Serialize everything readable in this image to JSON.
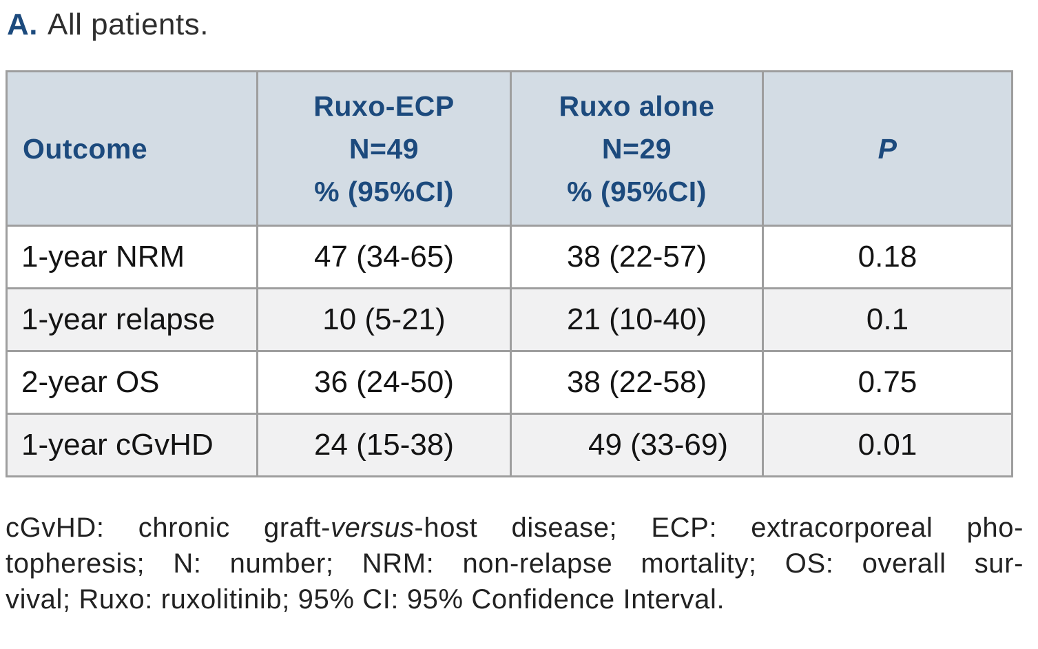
{
  "title": {
    "prefix": "A.",
    "text": "All patients."
  },
  "table": {
    "header": {
      "outcome": "Outcome",
      "ruxo_ecp_lines": [
        "Ruxo-ECP",
        "N=49",
        "% (95%CI)"
      ],
      "ruxo_alone_lines": [
        "Ruxo alone",
        "N=29",
        "% (95%CI)"
      ],
      "p": "P"
    },
    "rows": [
      {
        "outcome": "1-year NRM",
        "ruxo_ecp": "47 (34-65)",
        "ruxo_alone": "38 (22-57)",
        "p": "0.18"
      },
      {
        "outcome": "1-year relapse",
        "ruxo_ecp": "10 (5-21)",
        "ruxo_alone": "21 (10-40)",
        "p": "0.1"
      },
      {
        "outcome": "2-year OS",
        "ruxo_ecp": "36 (24-50)",
        "ruxo_alone": "38 (22-58)",
        "p": "0.75"
      },
      {
        "outcome": "1-year cGvHD",
        "ruxo_ecp": "24 (15-38)",
        "ruxo_alone": "49 (33-69)",
        "p": "0.01"
      }
    ]
  },
  "footnote": {
    "line1_pre": "cGvHD: chronic graft-",
    "line1_italic": "versus",
    "line1_post": "-host disease; ECP: extracorporeal pho-",
    "line2": "topheresis; N: number; NRM: non-relapse mortality; OS: overall sur-",
    "line3": "vival; Ruxo: ruxolitinib; 95% CI: 95% Confidence Interval."
  },
  "colors": {
    "header_bg": "#d3dce4",
    "header_text": "#1c4a7d",
    "accent_navy": "#1c4a7d",
    "alt_row_bg": "#f1f1f2",
    "border_gray": "#9e9e9e",
    "body_text": "#141414"
  }
}
